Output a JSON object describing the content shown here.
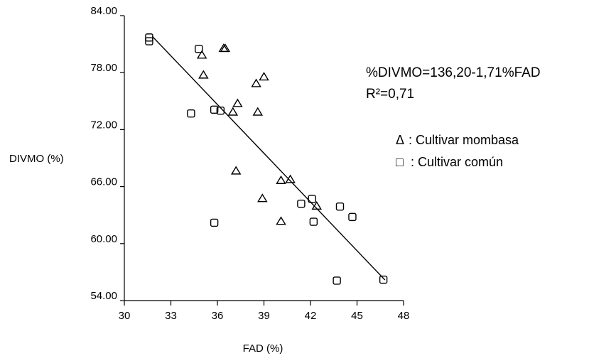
{
  "chart_data": {
    "type": "scatter",
    "title": "",
    "xlabel": "FAD (%)",
    "ylabel": "DIVMO (%)",
    "xlim": [
      30,
      48
    ],
    "ylim": [
      54,
      84
    ],
    "xticks": [
      "30",
      "33",
      "36",
      "39",
      "42",
      "45",
      "48"
    ],
    "yticks": [
      "54.00",
      "60.00",
      "66.00",
      "72.00",
      "78.00",
      "84.00"
    ],
    "grid": false,
    "series": [
      {
        "name": "Cultivar mombasa",
        "marker": "triangle",
        "points": [
          {
            "x": 35.0,
            "y": 79.9
          },
          {
            "x": 35.1,
            "y": 77.8
          },
          {
            "x": 36.4,
            "y": 80.6
          },
          {
            "x": 36.5,
            "y": 80.6
          },
          {
            "x": 37.3,
            "y": 74.8
          },
          {
            "x": 37.0,
            "y": 73.9
          },
          {
            "x": 38.5,
            "y": 76.9
          },
          {
            "x": 38.6,
            "y": 73.9
          },
          {
            "x": 39.0,
            "y": 77.6
          },
          {
            "x": 37.2,
            "y": 67.7
          },
          {
            "x": 38.9,
            "y": 64.8
          },
          {
            "x": 40.1,
            "y": 66.7
          },
          {
            "x": 40.7,
            "y": 66.8
          },
          {
            "x": 40.1,
            "y": 62.4
          },
          {
            "x": 42.4,
            "y": 64.0
          }
        ]
      },
      {
        "name": "Cultivar común",
        "marker": "square",
        "points": [
          {
            "x": 31.6,
            "y": 81.7
          },
          {
            "x": 31.6,
            "y": 81.3
          },
          {
            "x": 34.8,
            "y": 80.5
          },
          {
            "x": 34.3,
            "y": 73.7
          },
          {
            "x": 35.8,
            "y": 74.1
          },
          {
            "x": 36.2,
            "y": 74.0
          },
          {
            "x": 35.8,
            "y": 62.2
          },
          {
            "x": 41.4,
            "y": 64.2
          },
          {
            "x": 42.1,
            "y": 64.7
          },
          {
            "x": 42.2,
            "y": 62.3
          },
          {
            "x": 43.9,
            "y": 63.9
          },
          {
            "x": 44.7,
            "y": 62.8
          },
          {
            "x": 43.7,
            "y": 56.1
          },
          {
            "x": 46.7,
            "y": 56.2
          }
        ]
      }
    ],
    "trendline": {
      "slope": -1.71,
      "intercept": 136.2,
      "x_range": [
        31.8,
        46.8
      ]
    },
    "annotations": [
      "%DIVMO=136,20-1,71%FAD",
      "R²=0,71"
    ],
    "legend_position": "right",
    "legend": [
      {
        "symbol": "Δ",
        "label": ": Cultivar mombasa"
      },
      {
        "symbol": "□",
        "label": ": Cultivar común"
      }
    ]
  }
}
